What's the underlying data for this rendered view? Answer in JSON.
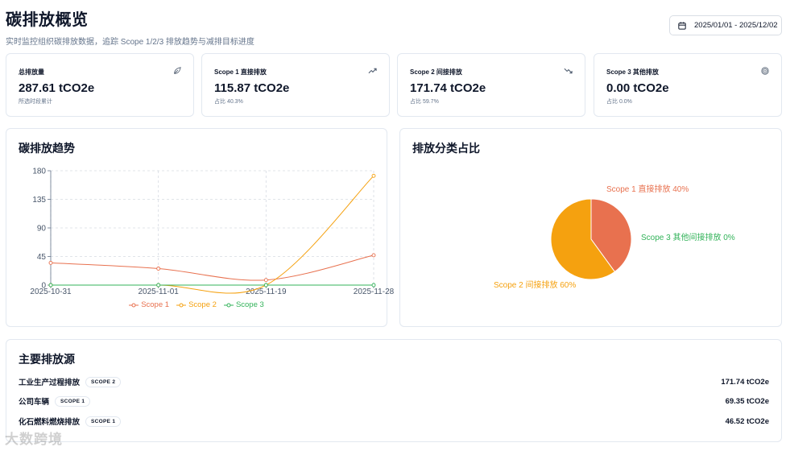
{
  "header": {
    "title": "碳排放概览",
    "subtitle": "实时监控组织碳排放数据，追踪 Scope 1/2/3 排放趋势与减排目标进度",
    "date_range": "2025/01/01 - 2025/12/02"
  },
  "stats": [
    {
      "title": "总排放量",
      "value": "287.61 tCO2e",
      "sub": "所选时段累计",
      "icon": "leaf-icon"
    },
    {
      "title": "Scope 1 直接排放",
      "value": "115.87 tCO2e",
      "sub": "占比 40.3%",
      "icon": "trending-up-icon"
    },
    {
      "title": "Scope 2 间接排放",
      "value": "171.74 tCO2e",
      "sub": "占比 59.7%",
      "icon": "trending-down-icon"
    },
    {
      "title": "Scope 3 其他排放",
      "value": "0.00 tCO2e",
      "sub": "占比 0.0%",
      "icon": "target-icon"
    }
  ],
  "trend": {
    "title": "碳排放趋势"
  },
  "breakdown": {
    "title": "排放分类占比"
  },
  "sources": {
    "title": "主要排放源",
    "rows": [
      {
        "name": "工业生产过程排放",
        "scope": "SCOPE 2",
        "value": "171.74 tCO2e"
      },
      {
        "name": "公司车辆",
        "scope": "SCOPE 1",
        "value": "69.35 tCO2e"
      },
      {
        "name": "化石燃料燃烧排放",
        "scope": "SCOPE 1",
        "value": "46.52 tCO2e"
      }
    ]
  },
  "watermark": "大数跨境",
  "colors": {
    "scope1": "#e8714f",
    "scope2": "#f5a10f",
    "scope3": "#33b35a",
    "grid": "#d6dbe2"
  },
  "chart_data": [
    {
      "type": "line",
      "title": "碳排放趋势",
      "x": [
        "2025-10-31",
        "2025-11-01",
        "2025-11-19",
        "2025-11-28"
      ],
      "yticks": [
        "0",
        "45",
        "90",
        "135",
        "180"
      ],
      "ylim": [
        0,
        180
      ],
      "grid": true,
      "legend_position": "bottom",
      "series": [
        {
          "name": "Scope 1",
          "values": [
            35,
            26,
            8,
            47
          ]
        },
        {
          "name": "Scope 2",
          "values": [
            0,
            0,
            0,
            172
          ]
        },
        {
          "name": "Scope 3",
          "values": [
            0,
            0,
            0,
            0
          ]
        }
      ]
    },
    {
      "type": "pie",
      "title": "排放分类占比",
      "slices": [
        {
          "label": "Scope 1 直接排放 40%",
          "value": 40
        },
        {
          "label": "Scope 2 间接排放 60%",
          "value": 60
        },
        {
          "label": "Scope 3 其他间接排放 0%",
          "value": 0
        }
      ]
    }
  ]
}
